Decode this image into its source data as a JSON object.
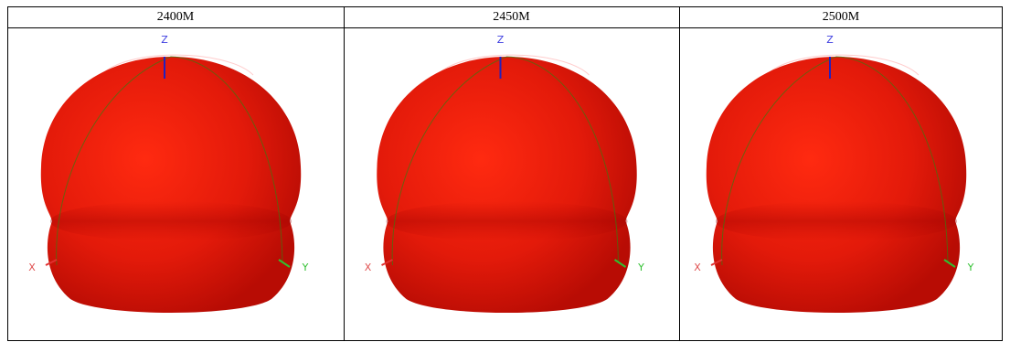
{
  "patterns": [
    {
      "label": "2400M",
      "axis_labels": {
        "z": "Z",
        "x": "X",
        "y": "Y"
      }
    },
    {
      "label": "2450M",
      "axis_labels": {
        "z": "Z",
        "x": "X",
        "y": "Y"
      }
    },
    {
      "label": "2500M",
      "axis_labels": {
        "z": "Z",
        "x": "X",
        "y": "Y"
      }
    }
  ]
}
